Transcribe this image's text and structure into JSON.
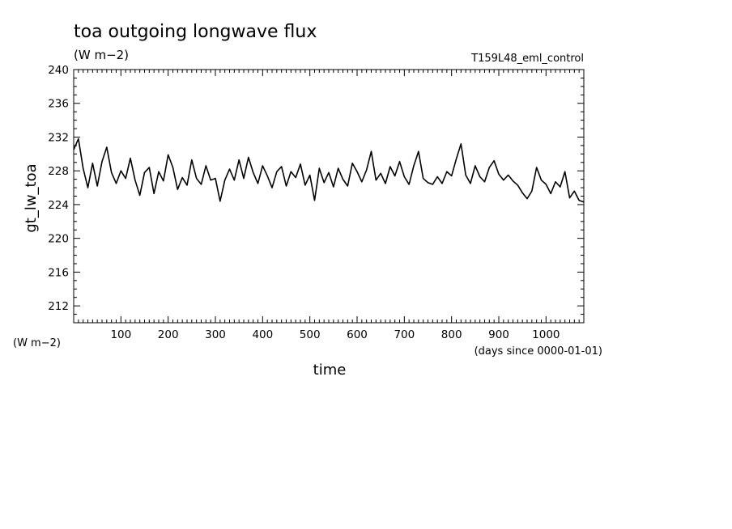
{
  "chart_data": {
    "type": "line",
    "title": "toa outgoing longwave flux",
    "units_label": "(W m−2)",
    "experiment": "T159L48_eml_control",
    "xlabel": "time",
    "x_units": "(days since 0000-01-01)",
    "ylabel": "gt_lw_toa",
    "y_units_label": "(W m−2)",
    "xlim": [
      0,
      1080
    ],
    "ylim": [
      210,
      240
    ],
    "x_tick_labels": [
      "100",
      "200",
      "300",
      "400",
      "500",
      "600",
      "700",
      "800",
      "900",
      "1000"
    ],
    "y_tick_labels": [
      "212",
      "216",
      "220",
      "224",
      "228",
      "232",
      "236",
      "240"
    ],
    "grid": false,
    "series": [
      {
        "x": [
          0,
          10,
          20,
          30,
          40,
          50,
          60,
          70,
          80,
          90,
          100,
          110,
          120,
          130,
          140,
          150,
          160,
          170,
          180,
          190,
          200,
          210,
          220,
          230,
          240,
          250,
          260,
          270,
          280,
          290,
          300,
          310,
          320,
          330,
          340,
          350,
          360,
          370,
          380,
          390,
          400,
          410,
          420,
          430,
          440,
          450,
          460,
          470,
          480,
          490,
          500,
          510,
          520,
          530,
          540,
          550,
          560,
          570,
          580,
          590,
          600,
          610,
          620,
          630,
          640,
          650,
          660,
          670,
          680,
          690,
          700,
          710,
          720,
          730,
          740,
          750,
          760,
          770,
          780,
          790,
          800,
          810,
          820,
          830,
          840,
          850,
          860,
          870,
          880,
          890,
          900,
          910,
          920,
          930,
          940,
          950,
          960,
          970,
          980,
          990,
          1000,
          1010,
          1020,
          1030,
          1040,
          1050,
          1060,
          1070,
          1080
        ],
        "y": [
          230.5,
          231.8,
          228.3,
          226.0,
          228.9,
          226.2,
          229.1,
          230.8,
          227.8,
          226.5,
          228.0,
          227.1,
          229.5,
          226.9,
          225.1,
          227.8,
          228.4,
          225.3,
          227.9,
          226.8,
          229.9,
          228.4,
          225.8,
          227.2,
          226.3,
          229.3,
          227.1,
          226.4,
          228.6,
          226.9,
          227.1,
          224.4,
          226.9,
          228.2,
          226.9,
          229.3,
          227.1,
          229.6,
          227.8,
          226.5,
          228.6,
          227.4,
          226.0,
          227.9,
          228.5,
          226.2,
          227.9,
          227.2,
          228.8,
          226.3,
          227.5,
          224.5,
          228.3,
          226.6,
          227.8,
          226.1,
          228.3,
          227.0,
          226.2,
          228.9,
          227.9,
          226.7,
          228.1,
          230.3,
          226.9,
          227.7,
          226.5,
          228.5,
          227.4,
          229.1,
          227.3,
          226.4,
          228.6,
          230.3,
          227.1,
          226.6,
          226.4,
          227.3,
          226.5,
          227.9,
          227.4,
          229.4,
          231.2,
          227.5,
          226.5,
          228.6,
          227.3,
          226.7,
          228.4,
          229.2,
          227.6,
          226.9,
          227.5,
          226.8,
          226.3,
          225.4,
          224.7,
          225.6,
          228.4,
          226.9,
          226.4,
          225.3,
          226.7,
          226.1,
          227.9,
          224.8,
          225.6,
          224.5,
          224.3
        ]
      }
    ]
  }
}
